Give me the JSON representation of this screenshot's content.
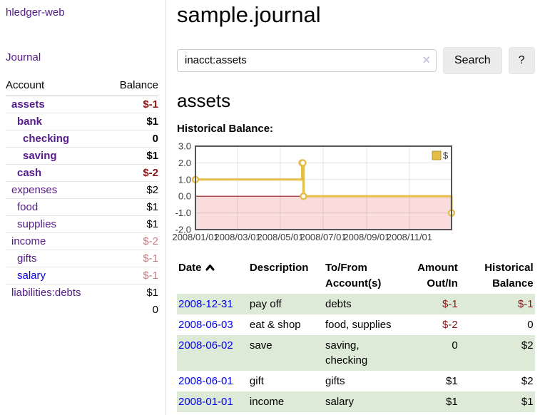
{
  "sidebar": {
    "app_title": "hledger-web",
    "journal_label": "Journal",
    "accounts_header": {
      "account": "Account",
      "balance": "Balance"
    },
    "accounts": [
      {
        "name": "assets",
        "indent": 1,
        "bold": true,
        "link_color": "purple",
        "balance": "$-1"
      },
      {
        "name": "bank",
        "indent": 2,
        "bold": true,
        "link_color": "purple",
        "balance": "$1"
      },
      {
        "name": "checking",
        "indent": 3,
        "bold": true,
        "link_color": "purple",
        "balance": "0"
      },
      {
        "name": "saving",
        "indent": 3,
        "bold": true,
        "link_color": "purple",
        "balance": "$1"
      },
      {
        "name": "cash",
        "indent": 2,
        "bold": true,
        "link_color": "purple",
        "balance": "$-2"
      },
      {
        "name": "expenses",
        "indent": 1,
        "bold": false,
        "link_color": "purple",
        "balance": "$2"
      },
      {
        "name": "food",
        "indent": 2,
        "bold": false,
        "link_color": "purple",
        "balance": "$1"
      },
      {
        "name": "supplies",
        "indent": 2,
        "bold": false,
        "link_color": "purple",
        "balance": "$1"
      },
      {
        "name": "income",
        "indent": 1,
        "bold": false,
        "link_color": "purple",
        "balance": "$-2"
      },
      {
        "name": "gifts",
        "indent": 2,
        "bold": false,
        "link_color": "purple",
        "balance": "$-1"
      },
      {
        "name": "salary",
        "indent": 2,
        "bold": false,
        "link_color": "blue",
        "balance": "$-1"
      },
      {
        "name": "liabilities:debts",
        "indent": 1,
        "bold": false,
        "link_color": "purple",
        "balance": "$1"
      }
    ],
    "total": "0"
  },
  "header": {
    "title": "sample.journal"
  },
  "search": {
    "value": "inacct:assets",
    "clear_icon": "×",
    "button_label": "Search",
    "help_label": "?"
  },
  "account_page": {
    "heading": "assets",
    "chart_label": "Historical Balance:"
  },
  "chart_data": {
    "type": "line",
    "title": "Historical Balance",
    "step": true,
    "series": [
      {
        "name": "$",
        "color": "#e3bd45",
        "points": [
          [
            "2008-01-01",
            1
          ],
          [
            "2008-06-01",
            2
          ],
          [
            "2008-06-02",
            2
          ],
          [
            "2008-06-03",
            0
          ],
          [
            "2008-12-31",
            -1
          ]
        ]
      }
    ],
    "x_range": [
      "2008-01-01",
      "2008-12-31"
    ],
    "ylim": [
      -2,
      3
    ],
    "y_ticks": [
      "3.0",
      "2.0",
      "1.0",
      "0.0",
      "-1.0",
      "-2.0"
    ],
    "x_ticks": [
      "2008/01/01",
      "2008/03/01",
      "2008/05/01",
      "2008/07/01",
      "2008/09/01",
      "2008/11/01"
    ],
    "grid": true,
    "legend": [
      "$"
    ],
    "legend_position": "top-right",
    "negative_region_fill": "#fbdcdc",
    "zero_line_color": "#8c1c1c",
    "border_color": "#545454"
  },
  "tx_table": {
    "headers": {
      "date": "Date",
      "description": "Description",
      "accounts": "To/From Account(s)",
      "amount": "Amount Out/In",
      "balance": "Historical Balance"
    },
    "rows": [
      {
        "date": "2008-12-31",
        "description": "pay off",
        "accounts": "debts",
        "amount": "$-1",
        "balance": "$-1"
      },
      {
        "date": "2008-06-03",
        "description": "eat & shop",
        "accounts": "food, supplies",
        "amount": "$-2",
        "balance": "0"
      },
      {
        "date": "2008-06-02",
        "description": "save",
        "accounts": "saving, checking",
        "amount": "0",
        "balance": "$2"
      },
      {
        "date": "2008-06-01",
        "description": "gift",
        "accounts": "gifts",
        "amount": "$1",
        "balance": "$2"
      },
      {
        "date": "2008-01-01",
        "description": "income",
        "accounts": "salary",
        "amount": "$1",
        "balance": "$1"
      }
    ]
  }
}
